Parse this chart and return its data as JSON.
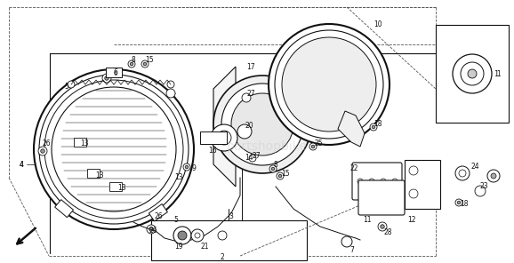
{
  "background_color": "#ffffff",
  "line_color": "#111111",
  "text_color": "#111111",
  "fig_width": 5.78,
  "fig_height": 2.96,
  "dpi": 100,
  "watermark": "partshopbike"
}
